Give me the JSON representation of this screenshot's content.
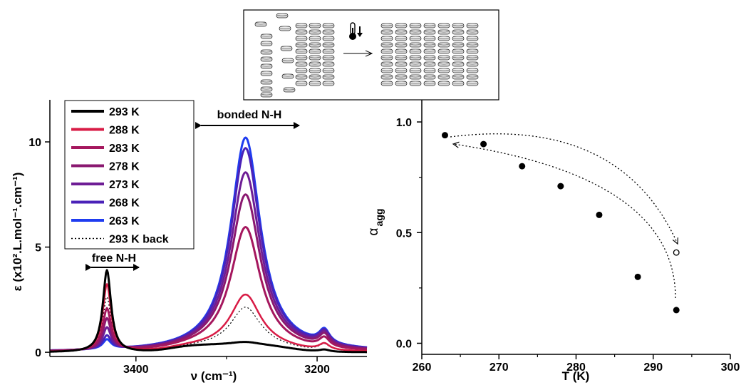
{
  "schematic": {
    "thermometer_icon": "thermometer-down-icon",
    "arrow_icon": "right-arrow-icon"
  },
  "chart_data": [
    {
      "type": "line",
      "title": "",
      "xlabel": "ν (cm⁻¹)",
      "ylabel": "ε (x10².L.mol⁻¹.cm⁻¹)",
      "xlim": [
        3495,
        3145
      ],
      "ylim": [
        -0.2,
        12
      ],
      "x_ticks": [
        3400,
        3200
      ],
      "y_ticks": [
        0,
        5,
        10
      ],
      "x_reversed": true,
      "grid": false,
      "legend_position": "top-left",
      "annotations": {
        "free": "free N-H",
        "bonded": "bonded N-H"
      },
      "peaks": {
        "free_center": 3432,
        "free_width": 5.5,
        "bonded_center": 3279,
        "bonded_width": 20,
        "small_center": 3192,
        "small_width": 7
      },
      "series": [
        {
          "name": "293 K",
          "color": "#000000",
          "dash": "",
          "width": 3,
          "free": 3.9,
          "bonded": 0.15,
          "small": 0.1,
          "plateau": 0.35
        },
        {
          "name": "288 K",
          "color": "#d81b45",
          "dash": "",
          "width": 2.5,
          "free": 3.2,
          "bonded": 2.5,
          "small": 0.3,
          "plateau": 0.25
        },
        {
          "name": "283 K",
          "color": "#a5175e",
          "dash": "",
          "width": 3,
          "free": 2.0,
          "bonded": 5.8,
          "small": 0.45,
          "plateau": 0.15
        },
        {
          "name": "278 K",
          "color": "#8a1870",
          "dash": "",
          "width": 3,
          "free": 1.5,
          "bonded": 7.4,
          "small": 0.55,
          "plateau": 0.1
        },
        {
          "name": "273 K",
          "color": "#6e1d95",
          "dash": "",
          "width": 3,
          "free": 1.05,
          "bonded": 8.5,
          "small": 0.6,
          "plateau": 0.05
        },
        {
          "name": "268 K",
          "color": "#4a22b8",
          "dash": "",
          "width": 3,
          "free": 0.65,
          "bonded": 9.7,
          "small": 0.62,
          "plateau": 0.0
        },
        {
          "name": "263 K",
          "color": "#1f3cf0",
          "dash": "",
          "width": 3,
          "free": 0.45,
          "bonded": 10.2,
          "small": 0.65,
          "plateau": 0.0
        },
        {
          "name": "293 K back",
          "color": "#000000",
          "dash": "2,3",
          "width": 1.2,
          "free": 2.6,
          "bonded": 1.9,
          "small": 0.3,
          "plateau": 0.25
        }
      ]
    },
    {
      "type": "scatter",
      "title": "",
      "xlabel": "T (K)",
      "ylabel": "α_agg",
      "ylabel_main": "α",
      "ylabel_sub": "agg",
      "xlim": [
        260,
        300
      ],
      "ylim": [
        -0.05,
        1.1
      ],
      "x_ticks": [
        260,
        270,
        280,
        290,
        300
      ],
      "y_ticks": [
        "0.0",
        "0.5",
        "1.0"
      ],
      "grid": false,
      "points": [
        {
          "x": 263,
          "y": 0.94
        },
        {
          "x": 268,
          "y": 0.9
        },
        {
          "x": 273,
          "y": 0.8
        },
        {
          "x": 278,
          "y": 0.71
        },
        {
          "x": 283,
          "y": 0.58
        },
        {
          "x": 288,
          "y": 0.3
        },
        {
          "x": 293,
          "y": 0.15
        }
      ],
      "open_points": [
        {
          "x": 293,
          "y": 0.41
        }
      ]
    }
  ]
}
